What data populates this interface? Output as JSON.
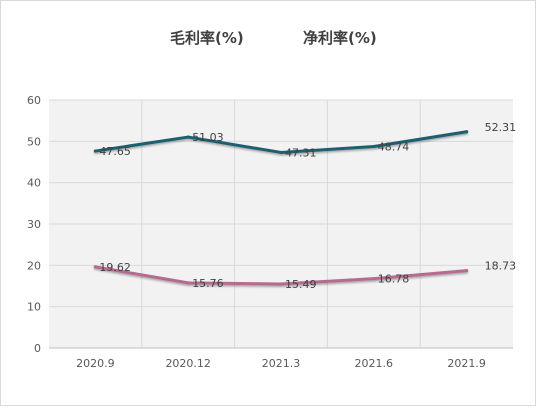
{
  "chart_data": {
    "type": "line",
    "title": "",
    "xlabel": "",
    "ylabel": "",
    "categories": [
      "2020.9",
      "2020.12",
      "2021.3",
      "2021.6",
      "2021.9"
    ],
    "ylim": [
      0,
      60
    ],
    "yticks": [
      "0",
      "10",
      "20",
      "30",
      "40",
      "50",
      "60"
    ],
    "grid": true,
    "legend_position": "top",
    "series": [
      {
        "name": "毛利率(%)",
        "values": [
          47.65,
          51.03,
          47.31,
          48.74,
          52.31
        ],
        "labels": [
          "47.65",
          "51.03",
          "47.31",
          "48.74",
          "52.31"
        ],
        "color": "#1f5f6f"
      },
      {
        "name": "净利率(%)",
        "values": [
          19.62,
          15.76,
          15.49,
          16.78,
          18.73
        ],
        "labels": [
          "19.62",
          "15.76",
          "15.49",
          "16.78",
          "18.73"
        ],
        "color": "#b56b8f"
      }
    ]
  }
}
